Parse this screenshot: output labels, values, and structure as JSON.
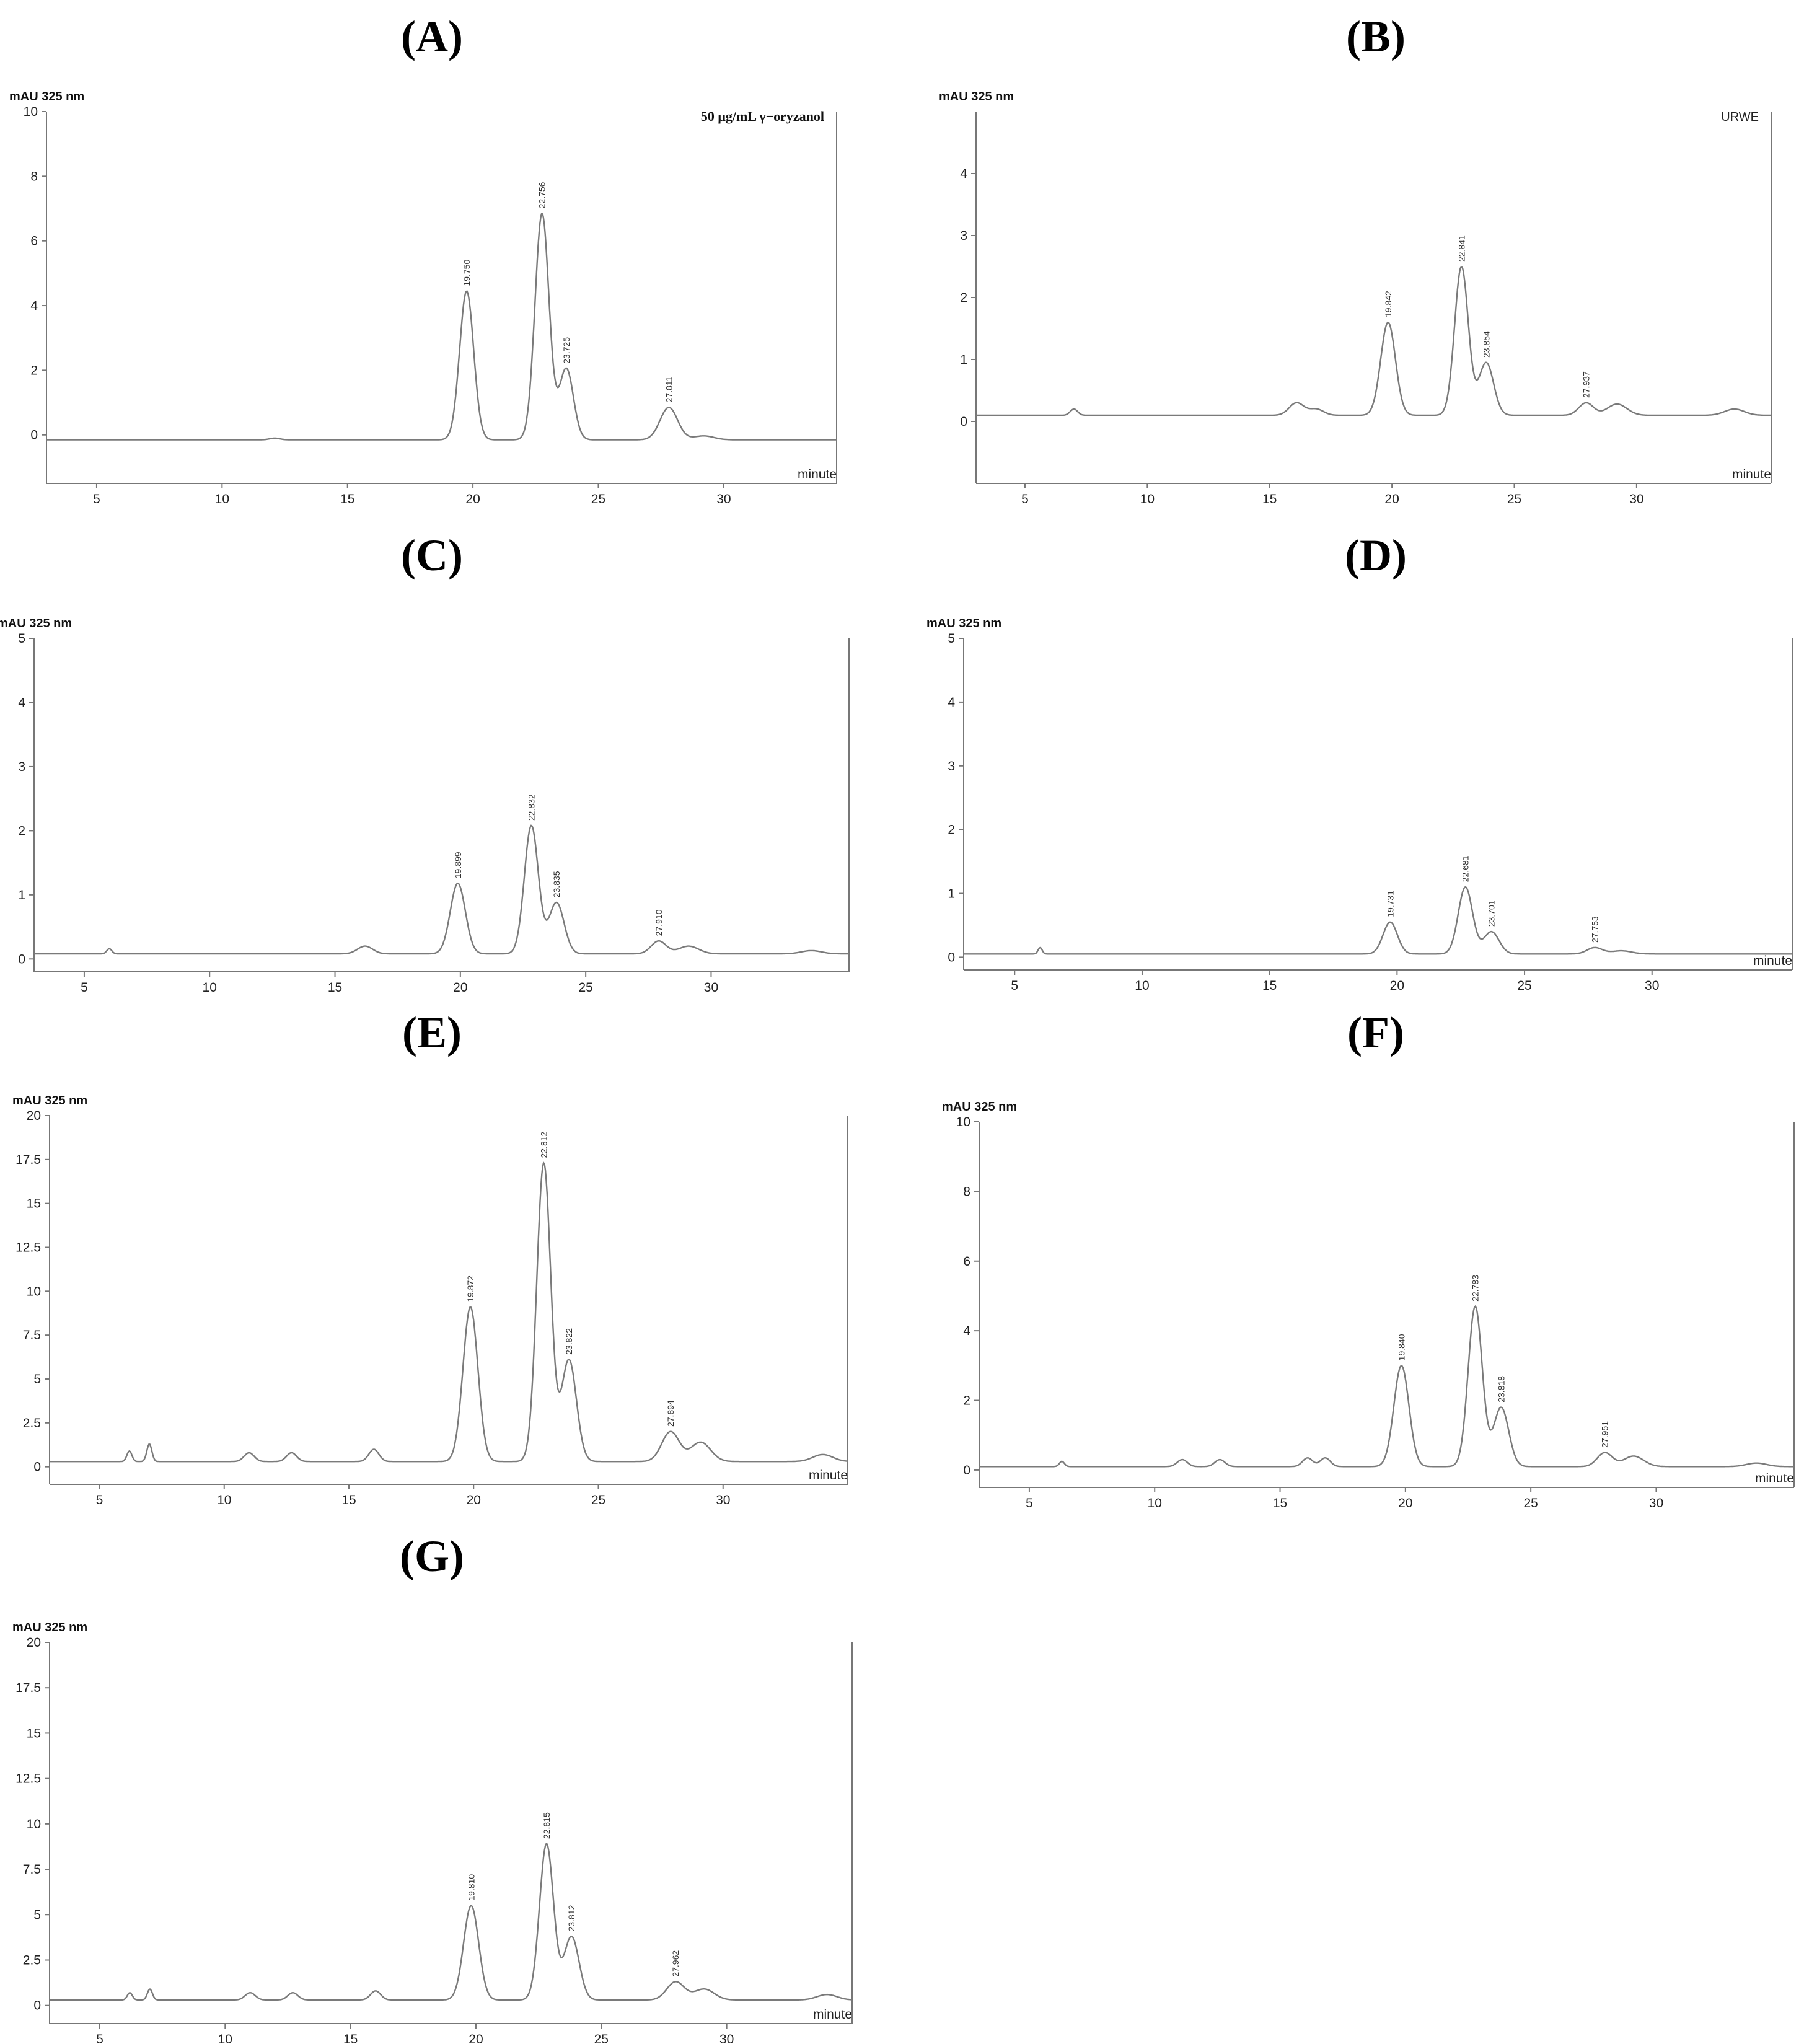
{
  "figure": {
    "labels": [
      "(A)",
      "(B)",
      "(C)",
      "(D)",
      "(E)",
      "(F)",
      "(G)"
    ]
  },
  "chart_data": [
    {
      "id": "A",
      "type": "line",
      "ylabel": "mAU 325 nm",
      "xlabel": "minute",
      "annotation": "50 μg/mL γ−oryzanol",
      "xlim": [
        3,
        34.5
      ],
      "ylim": [
        -1.5,
        10
      ],
      "xticks": [
        5,
        10,
        15,
        20,
        25,
        30
      ],
      "yticks": [
        0,
        2,
        4,
        6,
        8,
        10
      ],
      "yticks_text": [
        "0",
        "2",
        "4",
        "6",
        "8",
        "10"
      ],
      "baseline": -0.15,
      "peaks": [
        {
          "rt": 19.75,
          "label": "19.750",
          "height": 4.6,
          "width": 0.28
        },
        {
          "rt": 22.756,
          "label": "22.756",
          "height": 7.0,
          "width": 0.28
        },
        {
          "rt": 23.725,
          "label": "23.725",
          "height": 2.2,
          "width": 0.28
        },
        {
          "rt": 27.811,
          "label": "27.811",
          "height": 1.0,
          "width": 0.35
        }
      ],
      "minor_peaks": [
        {
          "rt": 29.2,
          "height": 0.12,
          "width": 0.4
        },
        {
          "rt": 12.1,
          "height": 0.05,
          "width": 0.2
        }
      ]
    },
    {
      "id": "B",
      "type": "line",
      "ylabel": "mAU 325 nm",
      "xlabel": "minute",
      "annotation": "URWE",
      "xlim": [
        3,
        35.5
      ],
      "ylim": [
        -1,
        5
      ],
      "xticks": [
        5,
        10,
        15,
        20,
        25,
        30
      ],
      "yticks": [
        0,
        1,
        2,
        3,
        4
      ],
      "yticks_text": [
        "0",
        "1",
        "2",
        "3",
        "4"
      ],
      "baseline": 0.1,
      "peaks": [
        {
          "rt": 19.842,
          "label": "19.842",
          "height": 1.5,
          "width": 0.3
        },
        {
          "rt": 22.841,
          "label": "22.841",
          "height": 2.4,
          "width": 0.28
        },
        {
          "rt": 23.854,
          "label": "23.854",
          "height": 0.85,
          "width": 0.3
        },
        {
          "rt": 27.937,
          "label": "27.937",
          "height": 0.2,
          "width": 0.3
        }
      ],
      "minor_peaks": [
        {
          "rt": 7.0,
          "height": 0.1,
          "width": 0.15
        },
        {
          "rt": 16.1,
          "height": 0.2,
          "width": 0.3
        },
        {
          "rt": 16.9,
          "height": 0.1,
          "width": 0.3
        },
        {
          "rt": 29.2,
          "height": 0.18,
          "width": 0.4
        },
        {
          "rt": 34.0,
          "height": 0.1,
          "width": 0.4
        }
      ]
    },
    {
      "id": "C",
      "type": "line",
      "ylabel": "mAU 325 nm",
      "xlabel": "",
      "annotation": "",
      "xlim": [
        3,
        35.5
      ],
      "ylim": [
        -0.2,
        5
      ],
      "xticks": [
        5,
        10,
        15,
        20,
        25,
        30
      ],
      "yticks": [
        0,
        1,
        2,
        3,
        4,
        5
      ],
      "yticks_text": [
        "0",
        "1",
        "2",
        "3",
        "4",
        "5"
      ],
      "baseline": 0.08,
      "peaks": [
        {
          "rt": 19.899,
          "label": "19.899",
          "height": 1.1,
          "width": 0.3
        },
        {
          "rt": 22.832,
          "label": "22.832",
          "height": 2.0,
          "width": 0.28
        },
        {
          "rt": 23.835,
          "label": "23.835",
          "height": 0.8,
          "width": 0.3
        },
        {
          "rt": 27.91,
          "label": "27.910",
          "height": 0.2,
          "width": 0.3
        }
      ],
      "minor_peaks": [
        {
          "rt": 6.0,
          "height": 0.08,
          "width": 0.1
        },
        {
          "rt": 16.2,
          "height": 0.12,
          "width": 0.3
        },
        {
          "rt": 29.1,
          "height": 0.12,
          "width": 0.4
        },
        {
          "rt": 34.0,
          "height": 0.05,
          "width": 0.4
        }
      ]
    },
    {
      "id": "D",
      "type": "line",
      "ylabel": "mAU 325 nm",
      "xlabel": "minute",
      "annotation": "",
      "xlim": [
        3,
        35.5
      ],
      "ylim": [
        -0.2,
        5
      ],
      "xticks": [
        5,
        10,
        15,
        20,
        25,
        30
      ],
      "yticks": [
        0,
        1,
        2,
        3,
        4,
        5
      ],
      "yticks_text": [
        "0",
        "1",
        "2",
        "3",
        "4",
        "5"
      ],
      "baseline": 0.05,
      "peaks": [
        {
          "rt": 19.731,
          "label": "19.731",
          "height": 0.5,
          "width": 0.28
        },
        {
          "rt": 22.681,
          "label": "22.681",
          "height": 1.05,
          "width": 0.28
        },
        {
          "rt": 23.701,
          "label": "23.701",
          "height": 0.35,
          "width": 0.3
        },
        {
          "rt": 27.753,
          "label": "27.753",
          "height": 0.1,
          "width": 0.3
        }
      ],
      "minor_peaks": [
        {
          "rt": 6.0,
          "height": 0.1,
          "width": 0.08
        },
        {
          "rt": 28.8,
          "height": 0.05,
          "width": 0.4
        }
      ]
    },
    {
      "id": "E",
      "type": "line",
      "ylabel": "mAU 325 nm",
      "xlabel": "minute",
      "annotation": "",
      "xlim": [
        3,
        35
      ],
      "ylim": [
        -1,
        20
      ],
      "xticks": [
        5,
        10,
        15,
        20,
        25,
        30
      ],
      "yticks": [
        0,
        2.5,
        5,
        7.5,
        10,
        12.5,
        15,
        17.5,
        20
      ],
      "yticks_text": [
        "0",
        "2.5",
        "5",
        "7.5",
        "10",
        "12.5",
        "15",
        "17.5",
        "20"
      ],
      "baseline": 0.3,
      "peaks": [
        {
          "rt": 19.872,
          "label": "19.872",
          "height": 8.8,
          "width": 0.3
        },
        {
          "rt": 22.812,
          "label": "22.812",
          "height": 17.0,
          "width": 0.28
        },
        {
          "rt": 23.822,
          "label": "23.822",
          "height": 5.8,
          "width": 0.3
        },
        {
          "rt": 27.894,
          "label": "27.894",
          "height": 1.7,
          "width": 0.35
        }
      ],
      "minor_peaks": [
        {
          "rt": 6.2,
          "height": 0.6,
          "width": 0.1
        },
        {
          "rt": 7.0,
          "height": 1.0,
          "width": 0.1
        },
        {
          "rt": 11.0,
          "height": 0.5,
          "width": 0.2
        },
        {
          "rt": 12.7,
          "height": 0.5,
          "width": 0.2
        },
        {
          "rt": 16.0,
          "height": 0.7,
          "width": 0.2
        },
        {
          "rt": 29.1,
          "height": 1.1,
          "width": 0.4
        },
        {
          "rt": 34.0,
          "height": 0.4,
          "width": 0.4
        }
      ]
    },
    {
      "id": "F",
      "type": "line",
      "ylabel": "mAU 325 nm",
      "xlabel": "minute",
      "annotation": "",
      "xlim": [
        3,
        35.5
      ],
      "ylim": [
        -0.5,
        10
      ],
      "xticks": [
        5,
        10,
        15,
        20,
        25,
        30
      ],
      "yticks": [
        0,
        2,
        4,
        6,
        8,
        10
      ],
      "yticks_text": [
        "0",
        "2",
        "4",
        "6",
        "8",
        "10"
      ],
      "baseline": 0.1,
      "peaks": [
        {
          "rt": 19.84,
          "label": "19.840",
          "height": 2.9,
          "width": 0.3
        },
        {
          "rt": 22.783,
          "label": "22.783",
          "height": 4.6,
          "width": 0.28
        },
        {
          "rt": 23.818,
          "label": "23.818",
          "height": 1.7,
          "width": 0.3
        },
        {
          "rt": 27.951,
          "label": "27.951",
          "height": 0.4,
          "width": 0.3
        }
      ],
      "minor_peaks": [
        {
          "rt": 6.3,
          "height": 0.15,
          "width": 0.1
        },
        {
          "rt": 11.1,
          "height": 0.2,
          "width": 0.2
        },
        {
          "rt": 12.6,
          "height": 0.2,
          "width": 0.2
        },
        {
          "rt": 16.1,
          "height": 0.25,
          "width": 0.2
        },
        {
          "rt": 16.8,
          "height": 0.25,
          "width": 0.2
        },
        {
          "rt": 29.1,
          "height": 0.3,
          "width": 0.4
        },
        {
          "rt": 34.0,
          "height": 0.1,
          "width": 0.4
        }
      ]
    },
    {
      "id": "G",
      "type": "line",
      "ylabel": "mAU 325 nm",
      "xlabel": "minute",
      "annotation": "",
      "xlim": [
        3,
        35
      ],
      "ylim": [
        -1,
        20
      ],
      "xticks": [
        5,
        10,
        15,
        20,
        25,
        30
      ],
      "yticks": [
        0,
        2.5,
        5,
        7.5,
        10,
        12.5,
        15,
        17.5,
        20
      ],
      "yticks_text": [
        "0",
        "2.5",
        "5",
        "7.5",
        "10",
        "12.5",
        "15",
        "17.5",
        "20"
      ],
      "baseline": 0.3,
      "peaks": [
        {
          "rt": 19.81,
          "label": "19.810",
          "height": 5.2,
          "width": 0.3
        },
        {
          "rt": 22.815,
          "label": "22.815",
          "height": 8.6,
          "width": 0.28
        },
        {
          "rt": 23.812,
          "label": "23.812",
          "height": 3.5,
          "width": 0.3
        },
        {
          "rt": 27.962,
          "label": "27.962",
          "height": 1.0,
          "width": 0.35
        }
      ],
      "minor_peaks": [
        {
          "rt": 6.2,
          "height": 0.4,
          "width": 0.1
        },
        {
          "rt": 7.0,
          "height": 0.6,
          "width": 0.1
        },
        {
          "rt": 11.0,
          "height": 0.4,
          "width": 0.2
        },
        {
          "rt": 12.7,
          "height": 0.4,
          "width": 0.2
        },
        {
          "rt": 16.0,
          "height": 0.5,
          "width": 0.2
        },
        {
          "rt": 29.1,
          "height": 0.6,
          "width": 0.4
        },
        {
          "rt": 34.0,
          "height": 0.3,
          "width": 0.4
        }
      ]
    }
  ]
}
